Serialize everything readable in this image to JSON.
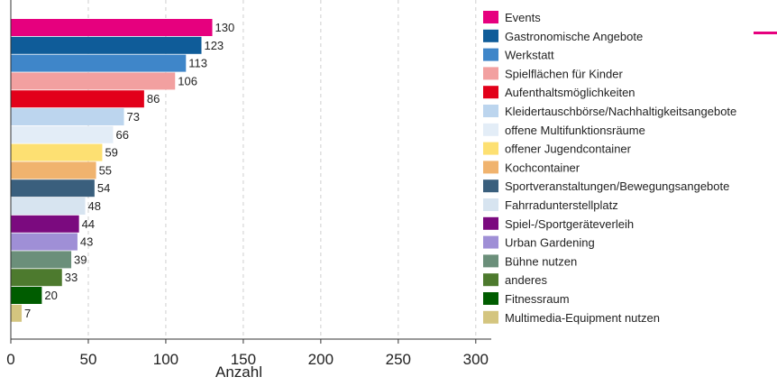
{
  "chart_data": {
    "type": "bar",
    "orientation": "horizontal",
    "categories": [
      "Events",
      "Gastronomische Angebote",
      "Werkstatt",
      "Spielflächen für Kinder",
      "Aufenthaltsmöglichkeiten",
      "Kleidertauschbörse/Nachhaltigkeitsangebote",
      "offene Multifunktionsräume",
      "offener Jugendcontainer",
      "Kochcontainer",
      "Sportveranstaltungen/Bewegungsangebote",
      "Fahrradunterstellplatz",
      "Spiel-/Sportgeräteverleih",
      "Urban Gardening",
      "Bühne nutzen",
      "anderes",
      "Fitnessraum",
      "Multimedia-Equipment nutzen"
    ],
    "values": [
      130,
      123,
      113,
      106,
      86,
      73,
      66,
      59,
      55,
      54,
      48,
      44,
      43,
      39,
      33,
      20,
      7
    ],
    "colors": [
      "#e6007e",
      "#0f5c99",
      "#3f86c9",
      "#f2a0a0",
      "#e2001a",
      "#bcd5ee",
      "#e3edf7",
      "#fde072",
      "#f0b36e",
      "#3a5f7d",
      "#d7e4f0",
      "#7b0a7f",
      "#9f8fd6",
      "#6b8f7a",
      "#4d7a2e",
      "#005c00",
      "#d4c57f"
    ],
    "xlabel": "Anzahl",
    "ylabel": "",
    "xlim": [
      0,
      310
    ],
    "xticks": [
      0,
      50,
      100,
      150,
      200,
      250,
      300
    ],
    "grid": true,
    "legend_position": "right",
    "bar_labels": true
  }
}
